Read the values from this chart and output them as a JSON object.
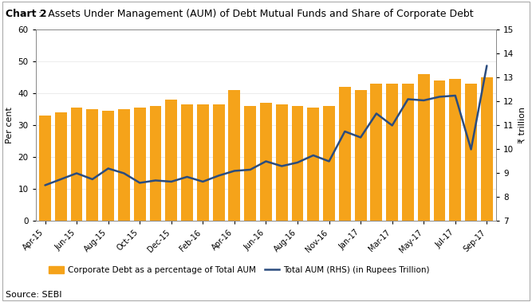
{
  "title_bold": "Chart 2",
  "title_colon": ":",
  "title_rest": "  Assets Under Management (AUM) of Debt Mutual Funds and Share of Corporate Debt",
  "source": "Source: SEBI",
  "x_labels_shown": [
    "Apr-15",
    "Jun-15",
    "Aug-15",
    "Oct-15",
    "Dec-15",
    "Feb-16",
    "Apr-16",
    "Jun-16",
    "Aug-16",
    "Nov-16",
    "Jan-17",
    "Mar-17",
    "May-17",
    "Jul-17",
    "Sep-17"
  ],
  "bar_values": [
    33,
    34,
    35.5,
    35,
    34.5,
    35,
    35.5,
    36,
    38,
    36.5,
    36.5,
    36.5,
    41,
    36,
    37,
    36.5,
    36,
    35.5,
    36,
    42,
    41,
    43,
    43,
    43,
    46,
    44,
    44.5,
    43,
    45
  ],
  "rhs_values": [
    8.5,
    8.75,
    9.0,
    8.75,
    9.2,
    9.0,
    8.6,
    8.7,
    8.65,
    8.85,
    8.65,
    8.9,
    9.1,
    9.15,
    9.5,
    9.3,
    9.45,
    9.75,
    9.5,
    10.75,
    10.5,
    11.5,
    11.0,
    12.1,
    12.05,
    12.2,
    12.25,
    10.0,
    13.5
  ],
  "bar_color": "#F5A31A",
  "line_color": "#2B4C7E",
  "ylim_left": [
    0,
    60
  ],
  "ylim_right": [
    7,
    15
  ],
  "yticks_left": [
    0,
    10,
    20,
    30,
    40,
    50,
    60
  ],
  "yticks_right": [
    7,
    8,
    9,
    10,
    11,
    12,
    13,
    14,
    15
  ],
  "ylabel_left": "Per cent",
  "ylabel_right": "₹ trillion",
  "legend_bar": "Corporate Debt as a percentage of Total AUM",
  "legend_line": "Total AUM (RHS) (in Rupees Trillion)",
  "background_color": "#FFFFFF",
  "outer_border_color": "#AAAAAA"
}
